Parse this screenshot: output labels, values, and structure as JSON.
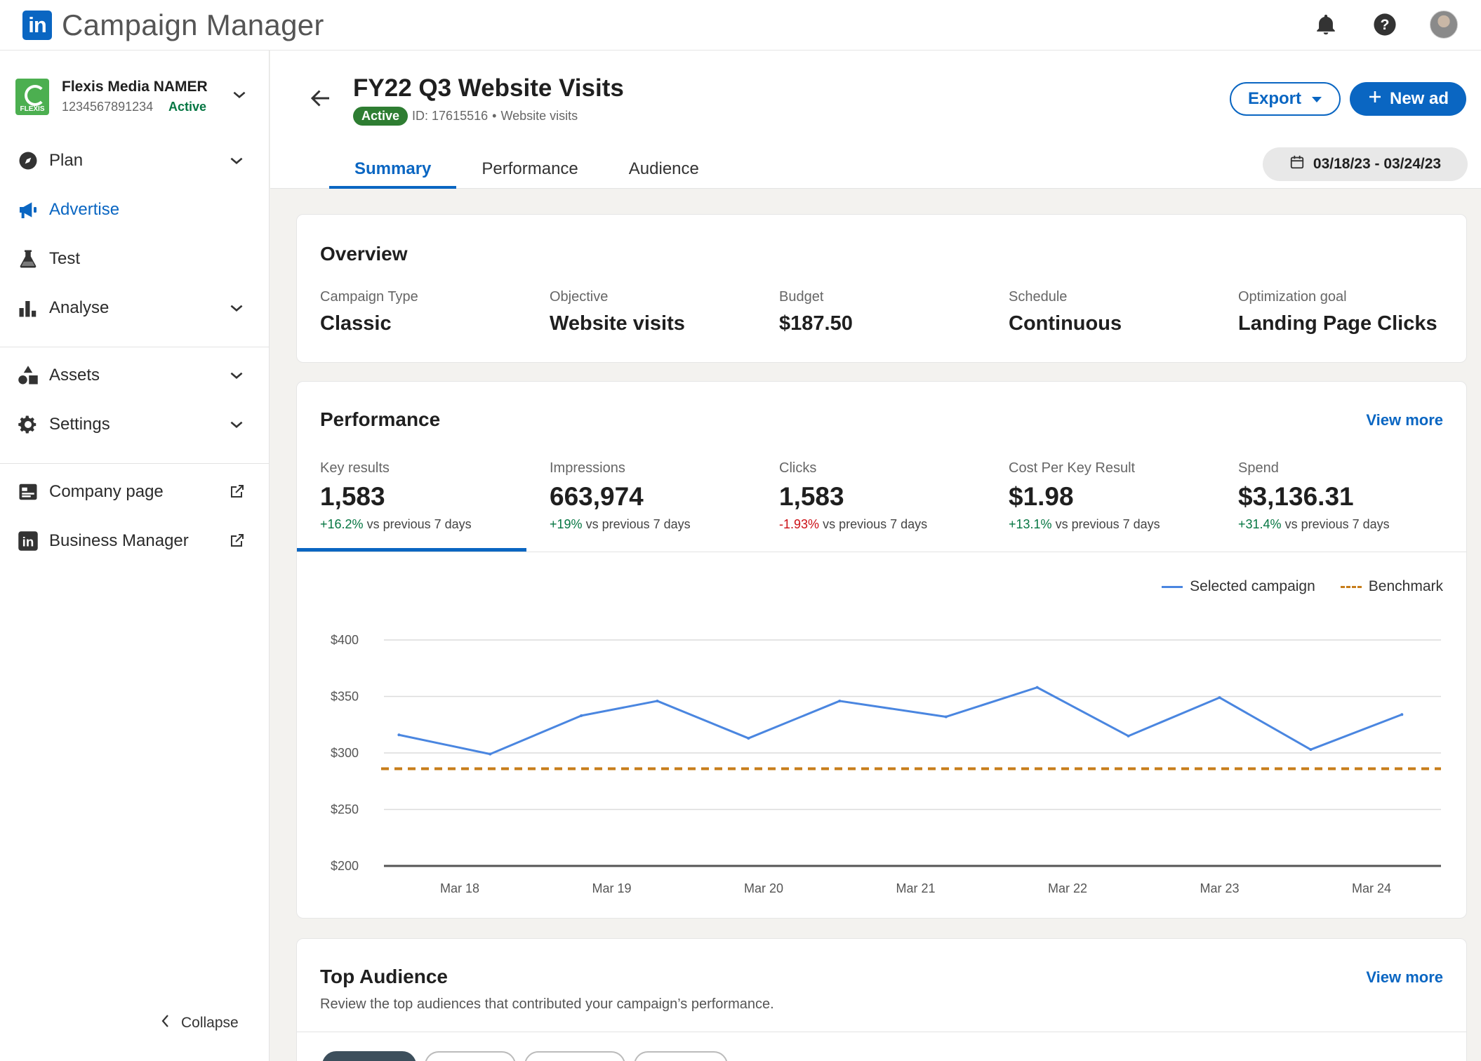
{
  "app": {
    "logo_text": "in",
    "title": "Campaign Manager"
  },
  "topbar_icons": [
    "bell-icon",
    "help-icon",
    "avatar"
  ],
  "account": {
    "logo_text": "FLEXIS",
    "name": "Flexis Media NAMER",
    "id": "1234567891234",
    "status": "Active"
  },
  "sidebar": {
    "items": [
      {
        "label": "Plan",
        "icon": "compass-icon"
      },
      {
        "label": "Advertise",
        "icon": "megaphone-icon"
      },
      {
        "label": "Test",
        "icon": "flask-icon"
      },
      {
        "label": "Analyse",
        "icon": "bar-chart-icon"
      },
      {
        "label": "Assets",
        "icon": "shapes-icon"
      },
      {
        "label": "Settings",
        "icon": "gear-icon"
      },
      {
        "label": "Company page",
        "icon": "company-page-icon"
      },
      {
        "label": "Business Manager",
        "icon": "linkedin-icon"
      }
    ],
    "collapse_label": "Collapse"
  },
  "campaign": {
    "title": "FY22 Q3 Website Visits",
    "status": "Active",
    "id_text": "ID: 17615516",
    "objective_text": "Website visits"
  },
  "actions": {
    "export_label": "Export",
    "new_ad_label": "New ad"
  },
  "tabs": [
    {
      "label": "Summary",
      "active": true
    },
    {
      "label": "Performance",
      "active": false
    },
    {
      "label": "Audience",
      "active": false
    }
  ],
  "date_range": "03/18/23 - 03/24/23",
  "overview": {
    "title": "Overview",
    "fields": [
      {
        "label": "Campaign Type",
        "value": "Classic"
      },
      {
        "label": "Objective",
        "value": "Website visits"
      },
      {
        "label": "Budget",
        "value": "$187.50"
      },
      {
        "label": "Schedule",
        "value": "Continuous"
      },
      {
        "label": "Optimization goal",
        "value": "Landing Page Clicks"
      }
    ]
  },
  "performance": {
    "title": "Performance",
    "view_more": "View more",
    "compare_text": "vs previous 7 days",
    "kpis": [
      {
        "label": "Key results",
        "value": "1,583",
        "delta": "+16.2%",
        "direction": "up",
        "selected": true
      },
      {
        "label": "Impressions",
        "value": "663,974",
        "delta": "+19%",
        "direction": "up",
        "selected": false
      },
      {
        "label": "Clicks",
        "value": "1,583",
        "delta": "-1.93%",
        "direction": "down",
        "selected": false
      },
      {
        "label": "Cost Per Key Result",
        "value": "$1.98",
        "delta": "+13.1%",
        "direction": "up",
        "selected": false
      },
      {
        "label": "Spend",
        "value": "$3,136.31",
        "delta": "+31.4%",
        "direction": "up",
        "selected": false
      }
    ],
    "legend": {
      "selected": "Selected campaign",
      "benchmark": "Benchmark"
    }
  },
  "chart_data": {
    "type": "line",
    "x": [
      "Mar 18",
      "Mar 19",
      "Mar 20",
      "Mar 21",
      "Mar 22",
      "Mar 23",
      "Mar 24"
    ],
    "y_ticks": [
      "$400",
      "$350",
      "$300",
      "$250",
      "$200"
    ],
    "ylim": [
      200,
      400
    ],
    "series": [
      {
        "name": "Selected campaign",
        "color": "#4a86e0",
        "points": [
          {
            "x": 17.6,
            "y": 316
          },
          {
            "x": 18.2,
            "y": 299
          },
          {
            "x": 18.8,
            "y": 333
          },
          {
            "x": 19.3,
            "y": 346
          },
          {
            "x": 19.9,
            "y": 313
          },
          {
            "x": 20.5,
            "y": 346
          },
          {
            "x": 21.2,
            "y": 332
          },
          {
            "x": 21.8,
            "y": 358
          },
          {
            "x": 22.4,
            "y": 315
          },
          {
            "x": 23.0,
            "y": 349
          },
          {
            "x": 23.6,
            "y": 303
          },
          {
            "x": 24.2,
            "y": 334
          }
        ]
      },
      {
        "name": "Benchmark",
        "color": "#c77d1a",
        "dashed": true,
        "value": 286
      }
    ],
    "grid": true
  },
  "top_audience": {
    "title": "Top Audience",
    "view_more": "View more",
    "subtitle": "Review the top audiences that contributed your campaign’s performance."
  },
  "colors": {
    "brand": "#0a66c2",
    "positive": "#057642",
    "negative": "#cc1016",
    "benchmark": "#c77d1a",
    "line": "#4a86e0"
  }
}
